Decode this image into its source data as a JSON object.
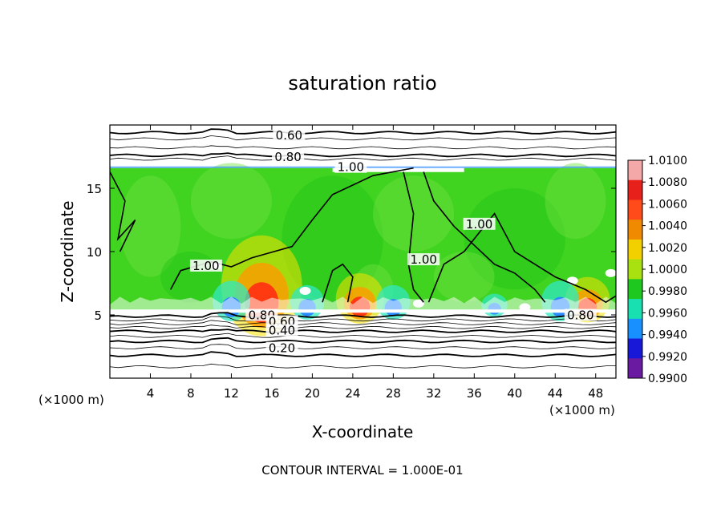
{
  "chart_data": {
    "type": "heatmap",
    "title": "saturation ratio",
    "xlabel": "X-coordinate",
    "ylabel": "Z-coordinate",
    "x_unit_left": "(×1000 m)",
    "x_unit_right": "(×1000 m)",
    "footer": "CONTOUR INTERVAL = 1.000E-01",
    "xlim": [
      0,
      50
    ],
    "ylim": [
      0,
      20
    ],
    "x_ticks": [
      4,
      8,
      12,
      16,
      20,
      24,
      28,
      32,
      36,
      40,
      44,
      48
    ],
    "y_ticks": [
      5,
      10,
      15
    ],
    "grid": false,
    "colorbar": {
      "levels": [
        "1.0100",
        "1.0080",
        "1.0060",
        "1.0040",
        "1.0020",
        "1.0000",
        "0.9980",
        "0.9960",
        "0.9940",
        "0.9920",
        "0.9900"
      ],
      "colors": [
        "#f4a8a8",
        "#e8201c",
        "#ff4a1a",
        "#f08a00",
        "#f2d000",
        "#a8e010",
        "#1ec81e",
        "#18e0b0",
        "#1890ff",
        "#1818d8",
        "#6a1aa0"
      ]
    },
    "contour_labels": [
      {
        "text": "0.60",
        "x": 17.7,
        "z": 19.1
      },
      {
        "text": "0.80",
        "x": 17.6,
        "z": 17.4
      },
      {
        "text": "1.00",
        "x": 23.8,
        "z": 16.6
      },
      {
        "text": "1.00",
        "x": 36.5,
        "z": 12.1
      },
      {
        "text": "1.00",
        "x": 31.0,
        "z": 9.3
      },
      {
        "text": "1.00",
        "x": 9.5,
        "z": 8.8
      },
      {
        "text": "0.80",
        "x": 15.0,
        "z": 4.9
      },
      {
        "text": "0.60",
        "x": 17.0,
        "z": 4.4
      },
      {
        "text": "0.40",
        "x": 17.0,
        "z": 3.7
      },
      {
        "text": "0.20",
        "x": 17.0,
        "z": 2.3
      },
      {
        "text": "0.80",
        "x": 46.5,
        "z": 4.9
      }
    ],
    "contour_lines_z": [
      19.4,
      18.9,
      18.2,
      17.6,
      17.3,
      4.9,
      4.6,
      4.3,
      4.0,
      3.7,
      3.3,
      2.9,
      2.4,
      1.8,
      0.9
    ],
    "cloud_top_z": 16.6,
    "cloud_base_z": 5.3,
    "field_colors": {
      "base": "#40d420",
      "light": "#70e040",
      "dark": "#22c418",
      "cyan": "#30e8c0",
      "blue": "#2a8cff",
      "red": "#ff3a10",
      "orange": "#ff9a00",
      "yellow": "#f5e000",
      "white": "#ffffff"
    },
    "plumes": [
      {
        "x": 15.0,
        "strength": 1.0,
        "kind": "warm"
      },
      {
        "x": 24.7,
        "strength": 0.5,
        "kind": "warm"
      },
      {
        "x": 47.2,
        "strength": 0.45,
        "kind": "warm"
      },
      {
        "x": 12.0,
        "strength": 0.7,
        "kind": "cold"
      },
      {
        "x": 19.5,
        "strength": 0.6,
        "kind": "cold"
      },
      {
        "x": 28.0,
        "strength": 0.6,
        "kind": "cold"
      },
      {
        "x": 44.5,
        "strength": 0.7,
        "kind": "cold"
      },
      {
        "x": 38.0,
        "strength": 0.4,
        "kind": "cold"
      }
    ]
  }
}
